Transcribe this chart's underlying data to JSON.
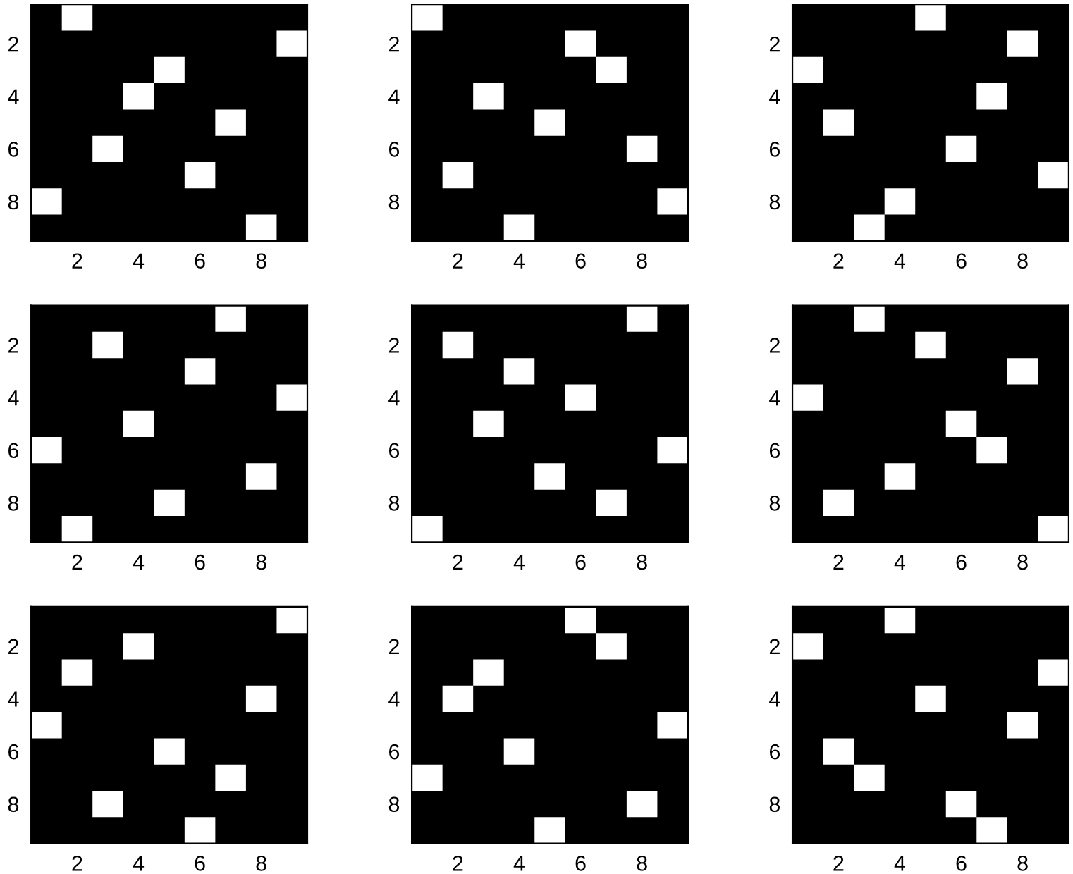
{
  "chart_data": [
    {
      "type": "scatter",
      "marker": "square",
      "color": "#ffffff",
      "x": [
        2,
        9,
        5,
        4,
        7,
        3,
        6,
        1,
        8
      ],
      "values": [
        1,
        2,
        3,
        4,
        5,
        6,
        7,
        8,
        9
      ],
      "xlim": [
        0.5,
        9.5
      ],
      "ylim": [
        9.5,
        0.5
      ],
      "xticks": [
        2,
        4,
        6,
        8
      ],
      "yticks": [
        2,
        4,
        6,
        8
      ]
    },
    {
      "type": "scatter",
      "marker": "square",
      "color": "#ffffff",
      "x": [
        1,
        6,
        7,
        3,
        5,
        8,
        2,
        9,
        4
      ],
      "values": [
        1,
        2,
        3,
        4,
        5,
        6,
        7,
        8,
        9
      ],
      "xlim": [
        0.5,
        9.5
      ],
      "ylim": [
        9.5,
        0.5
      ],
      "xticks": [
        2,
        4,
        6,
        8
      ],
      "yticks": [
        2,
        4,
        6,
        8
      ]
    },
    {
      "type": "scatter",
      "marker": "square",
      "color": "#ffffff",
      "x": [
        5,
        8,
        1,
        7,
        2,
        6,
        9,
        4,
        3
      ],
      "values": [
        1,
        2,
        3,
        4,
        5,
        6,
        7,
        8,
        9
      ],
      "xlim": [
        0.5,
        9.5
      ],
      "ylim": [
        9.5,
        0.5
      ],
      "xticks": [
        2,
        4,
        6,
        8
      ],
      "yticks": [
        2,
        4,
        6,
        8
      ]
    },
    {
      "type": "scatter",
      "marker": "square",
      "color": "#ffffff",
      "x": [
        7,
        3,
        6,
        9,
        4,
        1,
        8,
        5,
        2
      ],
      "values": [
        1,
        2,
        3,
        4,
        5,
        6,
        7,
        8,
        9
      ],
      "xlim": [
        0.5,
        9.5
      ],
      "ylim": [
        9.5,
        0.5
      ],
      "xticks": [
        2,
        4,
        6,
        8
      ],
      "yticks": [
        2,
        4,
        6,
        8
      ]
    },
    {
      "type": "scatter",
      "marker": "square",
      "color": "#ffffff",
      "x": [
        8,
        2,
        4,
        6,
        3,
        9,
        5,
        7,
        1
      ],
      "values": [
        1,
        2,
        3,
        4,
        5,
        6,
        7,
        8,
        9
      ],
      "xlim": [
        0.5,
        9.5
      ],
      "ylim": [
        9.5,
        0.5
      ],
      "xticks": [
        2,
        4,
        6,
        8
      ],
      "yticks": [
        2,
        4,
        6,
        8
      ]
    },
    {
      "type": "scatter",
      "marker": "square",
      "color": "#ffffff",
      "x": [
        3,
        5,
        8,
        1,
        6,
        7,
        4,
        2,
        9
      ],
      "values": [
        1,
        2,
        3,
        4,
        5,
        6,
        7,
        8,
        9
      ],
      "xlim": [
        0.5,
        9.5
      ],
      "ylim": [
        9.5,
        0.5
      ],
      "xticks": [
        2,
        4,
        6,
        8
      ],
      "yticks": [
        2,
        4,
        6,
        8
      ]
    },
    {
      "type": "scatter",
      "marker": "square",
      "color": "#ffffff",
      "x": [
        9,
        4,
        2,
        8,
        1,
        5,
        7,
        3,
        6
      ],
      "values": [
        1,
        2,
        3,
        4,
        5,
        6,
        7,
        8,
        9
      ],
      "xlim": [
        0.5,
        9.5
      ],
      "ylim": [
        9.5,
        0.5
      ],
      "xticks": [
        2,
        4,
        6,
        8
      ],
      "yticks": [
        2,
        4,
        6,
        8
      ]
    },
    {
      "type": "scatter",
      "marker": "square",
      "color": "#ffffff",
      "x": [
        6,
        7,
        3,
        2,
        9,
        4,
        1,
        8,
        5
      ],
      "values": [
        1,
        2,
        3,
        4,
        5,
        6,
        7,
        8,
        9
      ],
      "xlim": [
        0.5,
        9.5
      ],
      "ylim": [
        9.5,
        0.5
      ],
      "xticks": [
        2,
        4,
        6,
        8
      ],
      "yticks": [
        2,
        4,
        6,
        8
      ]
    },
    {
      "type": "scatter",
      "marker": "square",
      "color": "#ffffff",
      "x": [
        4,
        1,
        9,
        5,
        8,
        2,
        3,
        6,
        7
      ],
      "values": [
        1,
        2,
        3,
        4,
        5,
        6,
        7,
        8,
        9
      ],
      "xlim": [
        0.5,
        9.5
      ],
      "ylim": [
        9.5,
        0.5
      ],
      "xticks": [
        2,
        4,
        6,
        8
      ],
      "yticks": [
        2,
        4,
        6,
        8
      ]
    }
  ]
}
